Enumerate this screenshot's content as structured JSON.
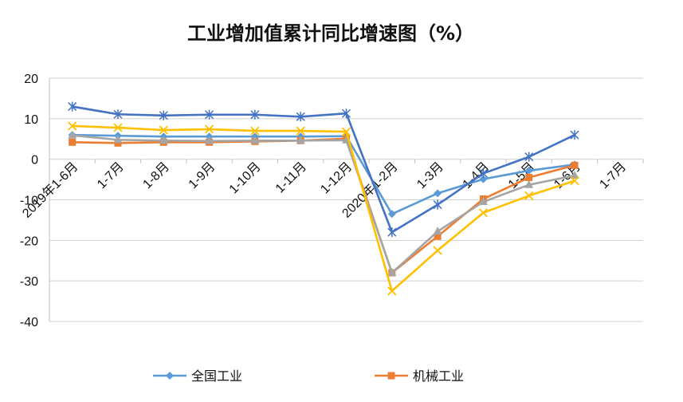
{
  "chart_data": {
    "type": "line",
    "title": "工业增加值累计同比增速图（%）",
    "xlabel": "",
    "ylabel": "",
    "ylim": [
      -40,
      20
    ],
    "yticks": [
      "20",
      "10",
      "0",
      "-10",
      "-20",
      "-30",
      "-40"
    ],
    "grid": true,
    "legend_position": "bottom",
    "categories": [
      "2019年1-6月",
      "1-7月",
      "1-8月",
      "1-9月",
      "1-10月",
      "1-11月",
      "1-12月",
      "2020年1-2月",
      "1-3月",
      "1-4月",
      "1-5月",
      "1-6月",
      "1-7月"
    ],
    "series": [
      {
        "name": "全国工业",
        "color": "#5B9BD5",
        "marker": "diamond",
        "values": [
          6.0,
          5.8,
          5.6,
          5.6,
          5.6,
          5.6,
          5.7,
          -13.5,
          -8.4,
          -4.9,
          -2.8,
          -1.3,
          null
        ]
      },
      {
        "name": "机械工业",
        "color": "#ED7D31",
        "marker": "square",
        "values": [
          4.2,
          4.0,
          4.2,
          4.2,
          4.4,
          4.6,
          5.1,
          -28.0,
          -19.0,
          -9.8,
          -4.5,
          -1.5,
          null
        ]
      },
      {
        "name": "",
        "color": "#A5A5A5",
        "marker": "triangle",
        "values": [
          5.9,
          4.8,
          4.6,
          4.5,
          4.6,
          4.6,
          4.7,
          -28.0,
          -17.8,
          -10.5,
          -6.3,
          -4.0,
          null
        ]
      },
      {
        "name": "",
        "color": "#FFC000",
        "marker": "x",
        "values": [
          8.2,
          7.8,
          7.2,
          7.4,
          7.0,
          7.0,
          6.8,
          -32.5,
          -22.5,
          -13.2,
          -9.0,
          -5.3,
          null
        ]
      },
      {
        "name": "",
        "color": "#4472C4",
        "marker": "star",
        "values": [
          13.0,
          11.1,
          10.8,
          11.0,
          11.0,
          10.5,
          11.3,
          -18.0,
          -11.2,
          -3.5,
          0.6,
          6.0,
          null
        ]
      }
    ]
  }
}
